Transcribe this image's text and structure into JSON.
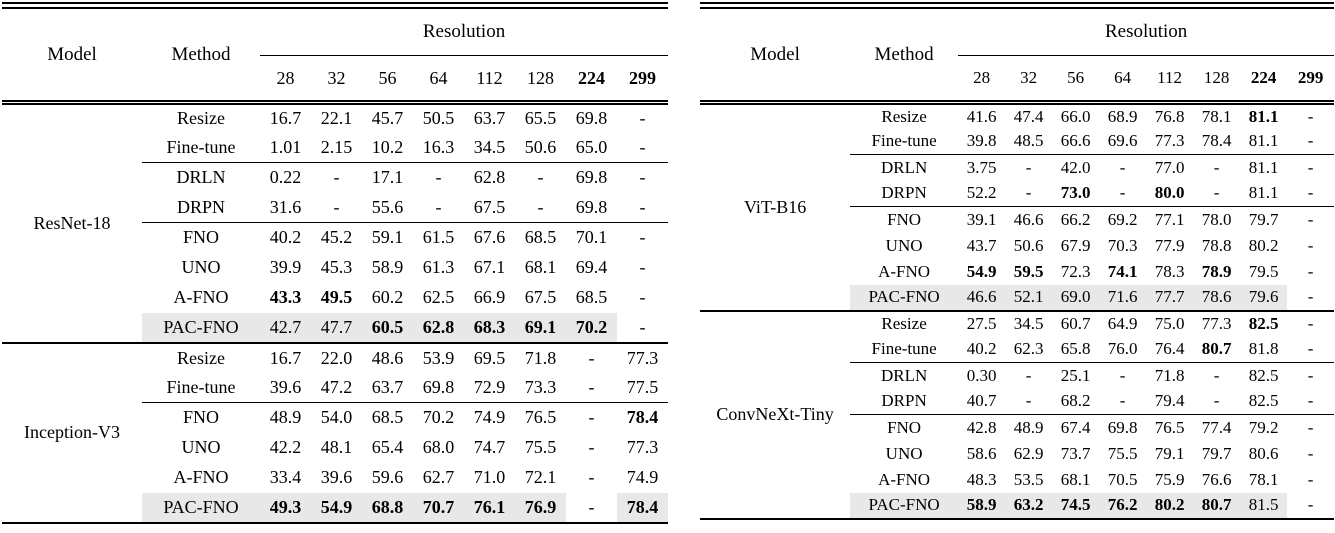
{
  "colors": {
    "highlight": "#e8e8e8",
    "rule": "#000000",
    "background": "#ffffff"
  },
  "tables": [
    {
      "id": "left",
      "header": {
        "model": "Model",
        "method": "Method",
        "resolution": "Resolution",
        "cols": [
          "28",
          "32",
          "56",
          "64",
          "112",
          "128",
          "224",
          "299"
        ],
        "col_bold": [
          0,
          0,
          0,
          0,
          0,
          0,
          1,
          1
        ]
      },
      "groups": [
        {
          "model": "ResNet-18",
          "rows": [
            {
              "method": "Resize",
              "values": [
                "16.7",
                "22.1",
                "45.7",
                "50.5",
                "63.7",
                "65.5",
                "69.8",
                "-"
              ]
            },
            {
              "method": "Fine-tune",
              "values": [
                "1.01",
                "2.15",
                "10.2",
                "16.3",
                "34.5",
                "50.6",
                "65.0",
                "-"
              ],
              "rule_after": true
            },
            {
              "method": "DRLN",
              "values": [
                "0.22",
                "-",
                "17.1",
                "-",
                "62.8",
                "-",
                "69.8",
                "-"
              ]
            },
            {
              "method": "DRPN",
              "values": [
                "31.6",
                "-",
                "55.6",
                "-",
                "67.5",
                "-",
                "69.8",
                "-"
              ],
              "rule_after": true
            },
            {
              "method": "FNO",
              "values": [
                "40.2",
                "45.2",
                "59.1",
                "61.5",
                "67.6",
                "68.5",
                "70.1",
                "-"
              ]
            },
            {
              "method": "UNO",
              "values": [
                "39.9",
                "45.3",
                "58.9",
                "61.3",
                "67.1",
                "68.1",
                "69.4",
                "-"
              ]
            },
            {
              "method": "A-FNO",
              "values": [
                "43.3",
                "49.5",
                "60.2",
                "62.5",
                "66.9",
                "67.5",
                "68.5",
                "-"
              ],
              "bold": [
                1,
                1,
                0,
                0,
                0,
                0,
                0,
                0
              ]
            },
            {
              "method": "PAC-FNO",
              "values": [
                "42.7",
                "47.7",
                "60.5",
                "62.8",
                "68.3",
                "69.1",
                "70.2",
                "-"
              ],
              "bold": [
                0,
                0,
                1,
                1,
                1,
                1,
                1,
                0
              ],
              "highlight": true
            }
          ]
        },
        {
          "model": "Inception-V3",
          "rows": [
            {
              "method": "Resize",
              "values": [
                "16.7",
                "22.0",
                "48.6",
                "53.9",
                "69.5",
                "71.8",
                "-",
                "77.3"
              ]
            },
            {
              "method": "Fine-tune",
              "values": [
                "39.6",
                "47.2",
                "63.7",
                "69.8",
                "72.9",
                "73.3",
                "-",
                "77.5"
              ],
              "rule_after": true
            },
            {
              "method": "FNO",
              "values": [
                "48.9",
                "54.0",
                "68.5",
                "70.2",
                "74.9",
                "76.5",
                "-",
                "78.4"
              ],
              "bold": [
                0,
                0,
                0,
                0,
                0,
                0,
                0,
                1
              ]
            },
            {
              "method": "UNO",
              "values": [
                "42.2",
                "48.1",
                "65.4",
                "68.0",
                "74.7",
                "75.5",
                "-",
                "77.3"
              ]
            },
            {
              "method": "A-FNO",
              "values": [
                "33.4",
                "39.6",
                "59.6",
                "62.7",
                "71.0",
                "72.1",
                "-",
                "74.9"
              ]
            },
            {
              "method": "PAC-FNO",
              "values": [
                "49.3",
                "54.9",
                "68.8",
                "70.7",
                "76.1",
                "76.9",
                "-",
                "78.4"
              ],
              "bold": [
                1,
                1,
                1,
                1,
                1,
                1,
                0,
                1
              ],
              "highlight": true
            }
          ]
        }
      ]
    },
    {
      "id": "right",
      "header": {
        "model": "Model",
        "method": "Method",
        "resolution": "Resolution",
        "cols": [
          "28",
          "32",
          "56",
          "64",
          "112",
          "128",
          "224",
          "299"
        ],
        "col_bold": [
          0,
          0,
          0,
          0,
          0,
          0,
          1,
          1
        ]
      },
      "groups": [
        {
          "model": "ViT-B16",
          "rows": [
            {
              "method": "Resize",
              "values": [
                "41.6",
                "47.4",
                "66.0",
                "68.9",
                "76.8",
                "78.1",
                "81.1",
                "-"
              ],
              "bold": [
                0,
                0,
                0,
                0,
                0,
                0,
                1,
                0
              ]
            },
            {
              "method": "Fine-tune",
              "values": [
                "39.8",
                "48.5",
                "66.6",
                "69.6",
                "77.3",
                "78.4",
                "81.1",
                "-"
              ],
              "rule_after": true
            },
            {
              "method": "DRLN",
              "values": [
                "3.75",
                "-",
                "42.0",
                "-",
                "77.0",
                "-",
                "81.1",
                "-"
              ]
            },
            {
              "method": "DRPN",
              "values": [
                "52.2",
                "-",
                "73.0",
                "-",
                "80.0",
                "-",
                "81.1",
                "-"
              ],
              "bold": [
                0,
                0,
                1,
                0,
                1,
                0,
                0,
                0
              ],
              "rule_after": true
            },
            {
              "method": "FNO",
              "values": [
                "39.1",
                "46.6",
                "66.2",
                "69.2",
                "77.1",
                "78.0",
                "79.7",
                "-"
              ]
            },
            {
              "method": "UNO",
              "values": [
                "43.7",
                "50.6",
                "67.9",
                "70.3",
                "77.9",
                "78.8",
                "80.2",
                "-"
              ]
            },
            {
              "method": "A-FNO",
              "values": [
                "54.9",
                "59.5",
                "72.3",
                "74.1",
                "78.3",
                "78.9",
                "79.5",
                "-"
              ],
              "bold": [
                1,
                1,
                0,
                1,
                0,
                1,
                0,
                0
              ]
            },
            {
              "method": "PAC-FNO",
              "values": [
                "46.6",
                "52.1",
                "69.0",
                "71.6",
                "77.7",
                "78.6",
                "79.6",
                "-"
              ],
              "highlight": true
            }
          ]
        },
        {
          "model": "ConvNeXt-Tiny",
          "rows": [
            {
              "method": "Resize",
              "values": [
                "27.5",
                "34.5",
                "60.7",
                "64.9",
                "75.0",
                "77.3",
                "82.5",
                "-"
              ],
              "bold": [
                0,
                0,
                0,
                0,
                0,
                0,
                1,
                0
              ]
            },
            {
              "method": "Fine-tune",
              "values": [
                "40.2",
                "62.3",
                "65.8",
                "76.0",
                "76.4",
                "80.7",
                "81.8",
                "-"
              ],
              "bold": [
                0,
                0,
                0,
                0,
                0,
                1,
                0,
                0
              ],
              "rule_after": true
            },
            {
              "method": "DRLN",
              "values": [
                "0.30",
                "-",
                "25.1",
                "-",
                "71.8",
                "-",
                "82.5",
                "-"
              ]
            },
            {
              "method": "DRPN",
              "values": [
                "40.7",
                "-",
                "68.2",
                "-",
                "79.4",
                "-",
                "82.5",
                "-"
              ],
              "rule_after": true
            },
            {
              "method": "FNO",
              "values": [
                "42.8",
                "48.9",
                "67.4",
                "69.8",
                "76.5",
                "77.4",
                "79.2",
                "-"
              ]
            },
            {
              "method": "UNO",
              "values": [
                "58.6",
                "62.9",
                "73.7",
                "75.5",
                "79.1",
                "79.7",
                "80.6",
                "-"
              ]
            },
            {
              "method": "A-FNO",
              "values": [
                "48.3",
                "53.5",
                "68.1",
                "70.5",
                "75.9",
                "76.6",
                "78.1",
                "-"
              ]
            },
            {
              "method": "PAC-FNO",
              "values": [
                "58.9",
                "63.2",
                "74.5",
                "76.2",
                "80.2",
                "80.7",
                "81.5",
                "-"
              ],
              "bold": [
                1,
                1,
                1,
                1,
                1,
                1,
                0,
                0
              ],
              "highlight": true
            }
          ]
        }
      ]
    }
  ]
}
